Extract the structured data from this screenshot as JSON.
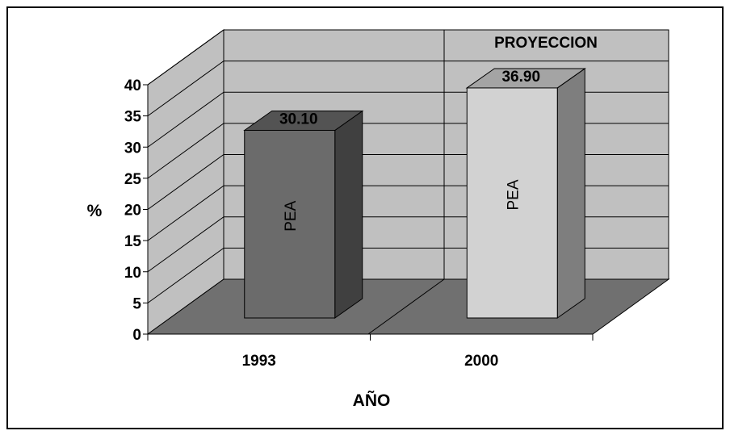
{
  "chart_data": {
    "type": "bar",
    "categories": [
      "1993",
      "2000"
    ],
    "values": [
      30.1,
      36.9
    ],
    "data_labels": [
      "30.10",
      "36.90"
    ],
    "bar_labels": [
      "PEA",
      "PEA"
    ],
    "bar_colors": [
      "#6b6b6b",
      "#d2d2d2"
    ],
    "ylim": [
      0,
      40
    ],
    "yticks": [
      0,
      5,
      10,
      15,
      20,
      25,
      30,
      35,
      40
    ],
    "ylabel": "%",
    "xlabel": "AÑO",
    "annotation": "PROYECCION",
    "grid": true,
    "style": "3d"
  }
}
